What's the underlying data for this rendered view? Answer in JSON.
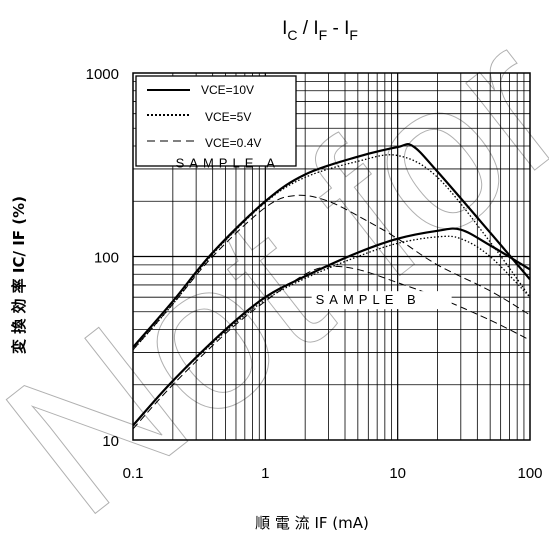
{
  "chart_data": {
    "type": "line",
    "title": "I_C / I_F - I_F",
    "title_parts": {
      "a": "I",
      "a_sub": "C",
      "sep": " / ",
      "b": "I",
      "b_sub": "F",
      "dash": " - ",
      "c": "I",
      "c_sub": "F"
    },
    "watermark": "Not for",
    "xlabel": "順 電 流  IF (mA)",
    "ylabel": "変 換 効 率   IC/ IF  (%)",
    "xscale": "log",
    "yscale": "log",
    "xlim": [
      0.1,
      100
    ],
    "ylim": [
      10,
      1000
    ],
    "xticks": [
      {
        "value": 0.1,
        "label": "0.1"
      },
      {
        "value": 1,
        "label": "1"
      },
      {
        "value": 10,
        "label": "10"
      },
      {
        "value": 100,
        "label": "100"
      }
    ],
    "yticks": [
      {
        "value": 10,
        "label": "10"
      },
      {
        "value": 100,
        "label": "100"
      },
      {
        "value": 1000,
        "label": "1000"
      }
    ],
    "grid": true,
    "legend_position": "top-left",
    "legend": [
      {
        "label": "VCE=10V",
        "style": "solid"
      },
      {
        "label": "VCE=5V",
        "style": "dotted"
      },
      {
        "label": "VCE=0.4V",
        "style": "dashed"
      }
    ],
    "annotations": [
      {
        "text": "SAMPLE A",
        "x": 0.21,
        "y": 305
      },
      {
        "text": "SAMPLE B",
        "x": 2.4,
        "y": 55
      }
    ],
    "series": [
      {
        "group": "SAMPLE A",
        "vce": "VCE=10V",
        "style": "solid",
        "x": [
          0.1,
          0.2,
          0.4,
          1,
          2,
          5,
          10,
          13,
          20,
          50,
          100
        ],
        "y": [
          32,
          57,
          105,
          200,
          280,
          350,
          395,
          400,
          290,
          135,
          75
        ]
      },
      {
        "group": "SAMPLE A",
        "vce": "VCE=5V",
        "style": "dotted",
        "x": [
          0.1,
          0.2,
          0.4,
          1,
          2,
          5,
          10,
          20,
          50,
          100
        ],
        "y": [
          31,
          55,
          103,
          197,
          270,
          330,
          355,
          270,
          120,
          60
        ]
      },
      {
        "group": "SAMPLE A",
        "vce": "VCE=0.4V",
        "style": "dashed",
        "x": [
          0.1,
          0.2,
          0.4,
          1,
          1.7,
          3,
          6,
          10,
          20,
          50,
          100
        ],
        "y": [
          31,
          55,
          100,
          185,
          215,
          200,
          155,
          125,
          90,
          65,
          48
        ]
      },
      {
        "group": "SAMPLE B",
        "vce": "VCE=10V",
        "style": "solid",
        "x": [
          0.1,
          0.2,
          0.5,
          1,
          2,
          5,
          10,
          20,
          30,
          50,
          100
        ],
        "y": [
          12,
          21,
          40,
          60,
          78,
          105,
          125,
          138,
          140,
          115,
          85
        ]
      },
      {
        "group": "SAMPLE B",
        "vce": "VCE=5V",
        "style": "dotted",
        "x": [
          0.1,
          0.2,
          0.5,
          1,
          2,
          5,
          10,
          20,
          30,
          50,
          100
        ],
        "y": [
          12,
          21,
          39,
          58,
          76,
          100,
          118,
          128,
          125,
          100,
          60
        ]
      },
      {
        "group": "SAMPLE B",
        "vce": "VCE=0.4V",
        "style": "dashed",
        "x": [
          0.1,
          0.2,
          0.5,
          1,
          2,
          3,
          5,
          10,
          20,
          50,
          100
        ],
        "y": [
          11.5,
          20,
          38,
          57,
          80,
          88,
          85,
          72,
          60,
          45,
          35
        ]
      }
    ]
  }
}
